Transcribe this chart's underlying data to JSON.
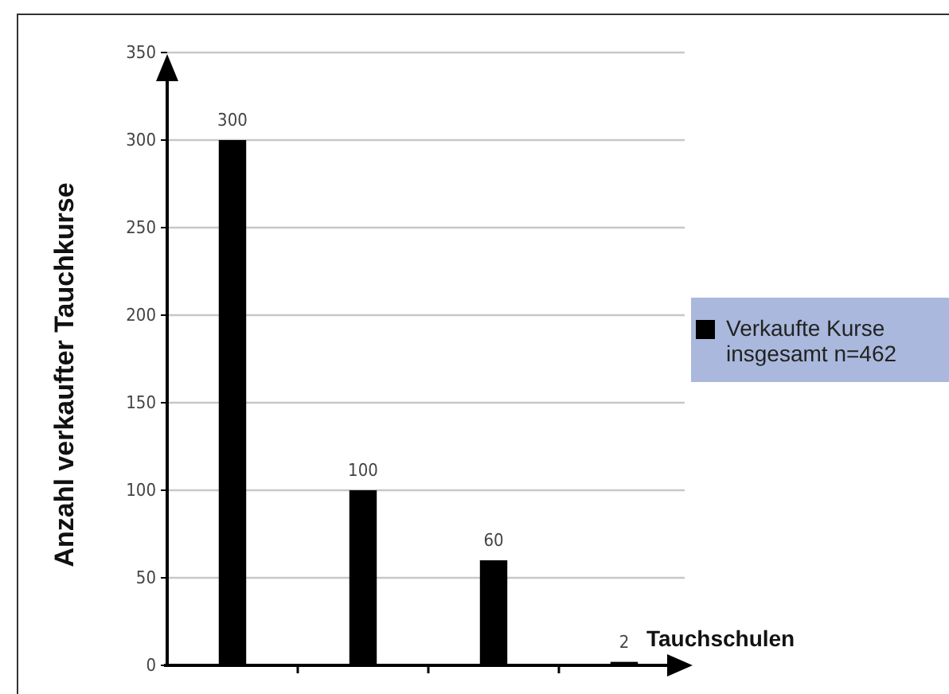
{
  "chart_data": {
    "type": "bar",
    "xlabel": "Tauchschulen",
    "ylabel": "Anzahl verkaufter Tauchkurse",
    "categories": [
      null,
      null,
      null,
      null
    ],
    "series": [
      {
        "name": "Verkaufte Kurse insgesamt n=462",
        "color": "#000000",
        "values": [
          300,
          100,
          60,
          2
        ]
      }
    ],
    "ylim": [
      0,
      350
    ],
    "yticks": [
      0,
      50,
      100,
      150,
      200,
      250,
      300,
      350
    ],
    "grid": "y",
    "legend": "right",
    "data_labels": true
  }
}
